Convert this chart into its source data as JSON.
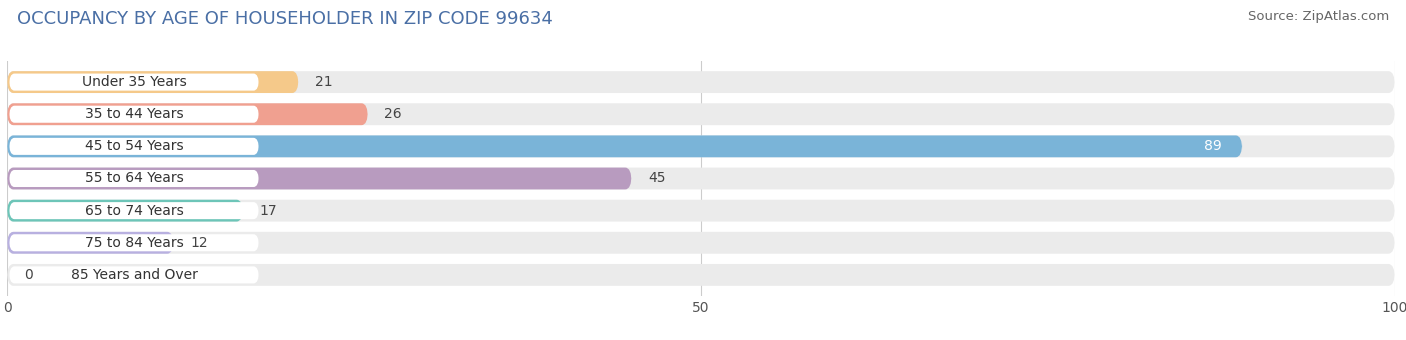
{
  "title": "OCCUPANCY BY AGE OF HOUSEHOLDER IN ZIP CODE 99634",
  "source": "Source: ZipAtlas.com",
  "categories": [
    "Under 35 Years",
    "35 to 44 Years",
    "45 to 54 Years",
    "55 to 64 Years",
    "65 to 74 Years",
    "75 to 84 Years",
    "85 Years and Over"
  ],
  "values": [
    21,
    26,
    89,
    45,
    17,
    12,
    0
  ],
  "bar_colors": [
    "#f5c98a",
    "#f0a090",
    "#7ab4d8",
    "#b89bbf",
    "#6dc5b8",
    "#b8b0e0",
    "#f5a0b5"
  ],
  "bg_color": "#ffffff",
  "bar_bg_color": "#ebebeb",
  "xlim": [
    0,
    100
  ],
  "title_fontsize": 13,
  "source_fontsize": 9.5,
  "label_fontsize": 10,
  "value_fontsize": 10,
  "bar_height": 0.68,
  "figsize": [
    14.06,
    3.4
  ],
  "dpi": 100
}
